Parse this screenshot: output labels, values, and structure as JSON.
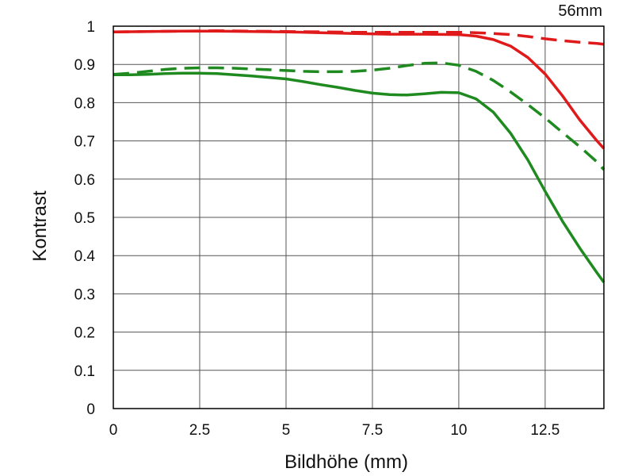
{
  "chart_data": {
    "type": "line",
    "title": "56mm",
    "xlabel": "Bildhöhe (mm)",
    "ylabel": "Kontrast",
    "xlim": [
      0,
      14.2
    ],
    "ylim": [
      0,
      1
    ],
    "grid": true,
    "x_ticks": [
      0,
      2.5,
      5,
      7.5,
      10,
      12.5
    ],
    "x_tick_labels": [
      "0",
      "2.5",
      "5",
      "7.5",
      "10",
      "12.5"
    ],
    "y_ticks": [
      0,
      0.1,
      0.2,
      0.3,
      0.4,
      0.5,
      0.6,
      0.7,
      0.8,
      0.9,
      1
    ],
    "y_tick_labels": [
      "0",
      "0.1",
      "0.2",
      "0.3",
      "0.4",
      "0.5",
      "0.6",
      "0.7",
      "0.8",
      "0.9",
      "1"
    ],
    "series": [
      {
        "color": "#e01a1a",
        "style": "solid",
        "x": [
          0,
          1,
          2,
          3,
          4,
          5,
          6,
          7,
          8,
          9,
          10,
          10.5,
          11,
          11.5,
          12,
          12.5,
          13,
          13.5,
          14,
          14.2
        ],
        "y": [
          0.985,
          0.986,
          0.987,
          0.987,
          0.986,
          0.985,
          0.983,
          0.981,
          0.979,
          0.979,
          0.978,
          0.974,
          0.965,
          0.948,
          0.918,
          0.875,
          0.818,
          0.755,
          0.7,
          0.68
        ]
      },
      {
        "color": "#e01a1a",
        "style": "dashed",
        "x": [
          0,
          1,
          2,
          3,
          4,
          5,
          6,
          7,
          8,
          9,
          10,
          10.5,
          11,
          11.5,
          12,
          12.5,
          13,
          13.5,
          14,
          14.2
        ],
        "y": [
          0.985,
          0.986,
          0.987,
          0.988,
          0.987,
          0.986,
          0.985,
          0.984,
          0.984,
          0.984,
          0.984,
          0.983,
          0.981,
          0.978,
          0.973,
          0.967,
          0.962,
          0.958,
          0.955,
          0.953
        ]
      },
      {
        "color": "#1f8a1f",
        "style": "solid",
        "x": [
          0,
          0.5,
          1,
          1.5,
          2,
          2.5,
          3,
          3.5,
          4,
          4.5,
          5,
          5.5,
          6,
          6.5,
          7,
          7.5,
          8,
          8.5,
          9,
          9.5,
          10,
          10.5,
          11,
          11.5,
          12,
          12.5,
          13,
          13.5,
          14,
          14.2
        ],
        "y": [
          0.873,
          0.873,
          0.874,
          0.876,
          0.877,
          0.877,
          0.876,
          0.873,
          0.87,
          0.866,
          0.862,
          0.855,
          0.847,
          0.84,
          0.832,
          0.825,
          0.821,
          0.82,
          0.823,
          0.827,
          0.826,
          0.81,
          0.775,
          0.72,
          0.65,
          0.568,
          0.49,
          0.42,
          0.355,
          0.33
        ]
      },
      {
        "color": "#1f8a1f",
        "style": "dashed",
        "x": [
          0,
          0.5,
          1,
          1.5,
          2,
          2.5,
          3,
          3.5,
          4,
          4.5,
          5,
          5.5,
          6,
          6.5,
          7,
          7.5,
          8,
          8.5,
          9,
          9.5,
          10,
          10.5,
          11,
          11.5,
          12,
          12.5,
          13,
          13.5,
          14,
          14.2
        ],
        "y": [
          0.874,
          0.877,
          0.882,
          0.887,
          0.89,
          0.891,
          0.891,
          0.89,
          0.888,
          0.886,
          0.884,
          0.882,
          0.881,
          0.881,
          0.882,
          0.885,
          0.89,
          0.897,
          0.903,
          0.904,
          0.898,
          0.882,
          0.858,
          0.828,
          0.795,
          0.76,
          0.722,
          0.685,
          0.645,
          0.625
        ]
      }
    ]
  }
}
